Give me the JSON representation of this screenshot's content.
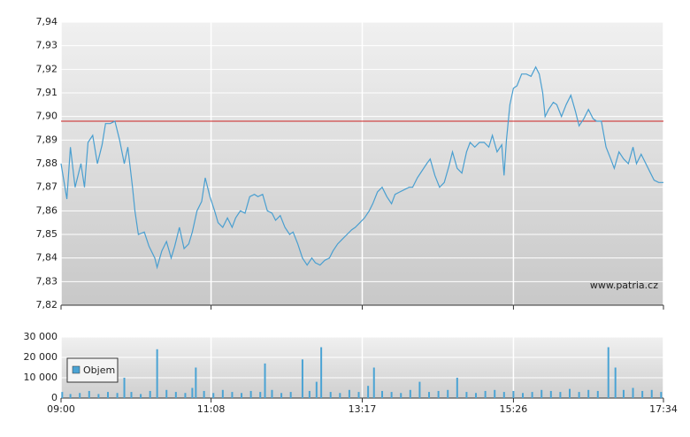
{
  "chart_data": [
    {
      "type": "line",
      "color": "#4a9fd0",
      "watermark": "www.patria.cz",
      "reference_line": {
        "value": 7.898,
        "color": "#cc2222"
      },
      "xlim": [
        540,
        1054
      ],
      "x": [
        540,
        545,
        548,
        552,
        557,
        560,
        563,
        567,
        571,
        575,
        578,
        582,
        586,
        590,
        594,
        597,
        601,
        603,
        606,
        611,
        615,
        620,
        622,
        626,
        630,
        634,
        637,
        641,
        645,
        649,
        652,
        656,
        660,
        663,
        667,
        671,
        674,
        678,
        682,
        686,
        689,
        693,
        697,
        701,
        705,
        708,
        712,
        716,
        720,
        723,
        727,
        731,
        735,
        738,
        742,
        746,
        750,
        754,
        757,
        761,
        765,
        769,
        772,
        776,
        780,
        784,
        788,
        791,
        795,
        799,
        803,
        806,
        810,
        814,
        818,
        822,
        825,
        829,
        833,
        837,
        840,
        844,
        848,
        852,
        855,
        859,
        863,
        867,
        871,
        874,
        878,
        882,
        886,
        889,
        893,
        897,
        901,
        905,
        908,
        912,
        916,
        918,
        920,
        923,
        926,
        929,
        933,
        937,
        941,
        945,
        948,
        951,
        953,
        956,
        960,
        963,
        967,
        971,
        975,
        979,
        982,
        986,
        990,
        994,
        997,
        1001,
        1005,
        1009,
        1012,
        1016,
        1020,
        1024,
        1028,
        1031,
        1035,
        1039,
        1043,
        1046,
        1050,
        1054
      ],
      "values": [
        7.88,
        7.865,
        7.887,
        7.87,
        7.88,
        7.87,
        7.889,
        7.892,
        7.88,
        7.888,
        7.897,
        7.897,
        7.898,
        7.89,
        7.88,
        7.887,
        7.87,
        7.86,
        7.85,
        7.851,
        7.845,
        7.84,
        7.836,
        7.843,
        7.847,
        7.84,
        7.845,
        7.853,
        7.844,
        7.846,
        7.851,
        7.86,
        7.864,
        7.874,
        7.866,
        7.86,
        7.855,
        7.853,
        7.857,
        7.853,
        7.857,
        7.86,
        7.859,
        7.866,
        7.867,
        7.866,
        7.867,
        7.86,
        7.859,
        7.856,
        7.858,
        7.853,
        7.85,
        7.851,
        7.846,
        7.84,
        7.837,
        7.84,
        7.838,
        7.837,
        7.839,
        7.84,
        7.843,
        7.846,
        7.848,
        7.85,
        7.852,
        7.853,
        7.855,
        7.857,
        7.86,
        7.863,
        7.868,
        7.87,
        7.866,
        7.863,
        7.867,
        7.868,
        7.869,
        7.87,
        7.87,
        7.874,
        7.877,
        7.88,
        7.882,
        7.875,
        7.87,
        7.872,
        7.879,
        7.885,
        7.878,
        7.876,
        7.885,
        7.889,
        7.887,
        7.889,
        7.889,
        7.887,
        7.892,
        7.885,
        7.888,
        7.875,
        7.89,
        7.905,
        7.912,
        7.913,
        7.918,
        7.918,
        7.917,
        7.921,
        7.918,
        7.91,
        7.9,
        7.903,
        7.906,
        7.905,
        7.9,
        7.905,
        7.909,
        7.902,
        7.896,
        7.899,
        7.903,
        7.899,
        7.898,
        7.898,
        7.887,
        7.882,
        7.878,
        7.885,
        7.882,
        7.88,
        7.887,
        7.88,
        7.884,
        7.88,
        7.876,
        7.873,
        7.872,
        7.872
      ],
      "ylim": [
        7.82,
        7.94
      ],
      "yticks": [
        {
          "value": 7.82,
          "label": "7,82"
        },
        {
          "value": 7.83,
          "label": "7,83"
        },
        {
          "value": 7.84,
          "label": "7,84"
        },
        {
          "value": 7.85,
          "label": "7,85"
        },
        {
          "value": 7.86,
          "label": "7,86"
        },
        {
          "value": 7.87,
          "label": "7,87"
        },
        {
          "value": 7.88,
          "label": "7,88"
        },
        {
          "value": 7.89,
          "label": "7,89"
        },
        {
          "value": 7.9,
          "label": "7,90"
        },
        {
          "value": 7.91,
          "label": "7,91"
        },
        {
          "value": 7.92,
          "label": "7,92"
        },
        {
          "value": 7.93,
          "label": "7,93"
        },
        {
          "value": 7.94,
          "label": "7,94"
        }
      ],
      "grid": true
    },
    {
      "type": "bar",
      "legend": "upper left",
      "xlim": [
        540,
        1054
      ],
      "xticks": [
        {
          "value": 540,
          "label": "09:00"
        },
        {
          "value": 668,
          "label": "11:08"
        },
        {
          "value": 797,
          "label": "13:17"
        },
        {
          "value": 926,
          "label": "15:26"
        },
        {
          "value": 1054,
          "label": "17:34"
        }
      ],
      "ylim": [
        0,
        30000
      ],
      "yticks": [
        0,
        {
          "value": 10000,
          "label": "10 000"
        },
        {
          "value": 20000,
          "label": "20 000"
        },
        {
          "value": 30000,
          "label": "30 000"
        }
      ],
      "x": [
        541,
        548,
        556,
        564,
        572,
        580,
        588,
        594,
        600,
        608,
        616,
        622,
        630,
        638,
        646,
        652,
        655,
        662,
        670,
        678,
        686,
        694,
        702,
        710,
        714,
        720,
        728,
        736,
        746,
        752,
        758,
        762,
        770,
        778,
        786,
        794,
        802,
        807,
        814,
        822,
        830,
        838,
        846,
        854,
        862,
        870,
        878,
        886,
        894,
        902,
        910,
        918,
        926,
        934,
        942,
        950,
        958,
        966,
        974,
        982,
        990,
        998,
        1007,
        1013,
        1020,
        1028,
        1036,
        1044,
        1052
      ],
      "series": [
        {
          "name": "Objem",
          "color": "#4aa3d4",
          "values": [
            3000,
            2000,
            2500,
            3500,
            2000,
            3000,
            2500,
            10000,
            3000,
            2000,
            3500,
            24000,
            4000,
            3000,
            2500,
            5000,
            15000,
            3500,
            2500,
            4000,
            3000,
            2500,
            3500,
            3000,
            17000,
            4000,
            2500,
            3000,
            19000,
            3500,
            8000,
            25000,
            3000,
            2500,
            4000,
            3000,
            6000,
            15000,
            3500,
            3000,
            2500,
            4000,
            8000,
            3000,
            3500,
            4000,
            10000,
            3000,
            2500,
            3500,
            4000,
            3000,
            3500,
            2500,
            3000,
            4000,
            3500,
            3000,
            4500,
            3000,
            4000,
            3500,
            25000,
            15000,
            4000,
            5000,
            3500,
            4000,
            3000
          ]
        }
      ],
      "grid": true
    }
  ]
}
